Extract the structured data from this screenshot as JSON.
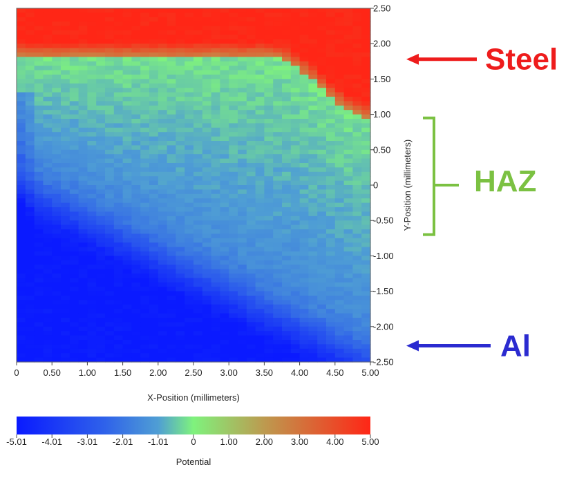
{
  "chart_data": {
    "type": "heatmap",
    "title": "",
    "xlabel": "X-Position (millimeters)",
    "ylabel": "Y-Position (millimeters)",
    "xlim": [
      0,
      5.0
    ],
    "ylim": [
      -2.5,
      2.5
    ],
    "x_ticks": [
      "0",
      "0.50",
      "1.00",
      "1.50",
      "2.00",
      "2.50",
      "3.00",
      "3.50",
      "4.00",
      "4.50",
      "5.00"
    ],
    "y_ticks": [
      "2.50",
      "2.00",
      "1.50",
      "1.00",
      "0.50",
      "0",
      "-0.50",
      "-1.00",
      "-1.50",
      "-2.00",
      "-2.50"
    ],
    "colorbar": {
      "label": "Potential",
      "range": [
        -5.01,
        5.0
      ],
      "ticks": [
        "-5.01",
        "-4.01",
        "-3.01",
        "-2.01",
        "-1.01",
        "0",
        "1.00",
        "2.00",
        "3.00",
        "4.00",
        "5.00"
      ],
      "colors": [
        "#0a1aff",
        "#2f62ea",
        "#4f9ed4",
        "#7ff27d",
        "#bd9a4f",
        "#ff2616"
      ]
    },
    "regions": [
      {
        "name": "Steel",
        "y_range": [
          1.8,
          2.5
        ],
        "potential": 4.8
      },
      {
        "name": "HAZ",
        "y_range": [
          -0.7,
          0.95
        ],
        "potential": -1.5
      },
      {
        "name": "Al",
        "y_range": [
          -2.5,
          -1.0
        ],
        "potential": -4.9
      }
    ],
    "annotations": [
      {
        "text": "Steel",
        "color": "#ee1c1c",
        "y": 1.78
      },
      {
        "text": "HAZ",
        "color": "#7bc142",
        "y": 0.07
      },
      {
        "text": "Al",
        "color": "#2b2bd0",
        "y": -2.27
      }
    ]
  }
}
